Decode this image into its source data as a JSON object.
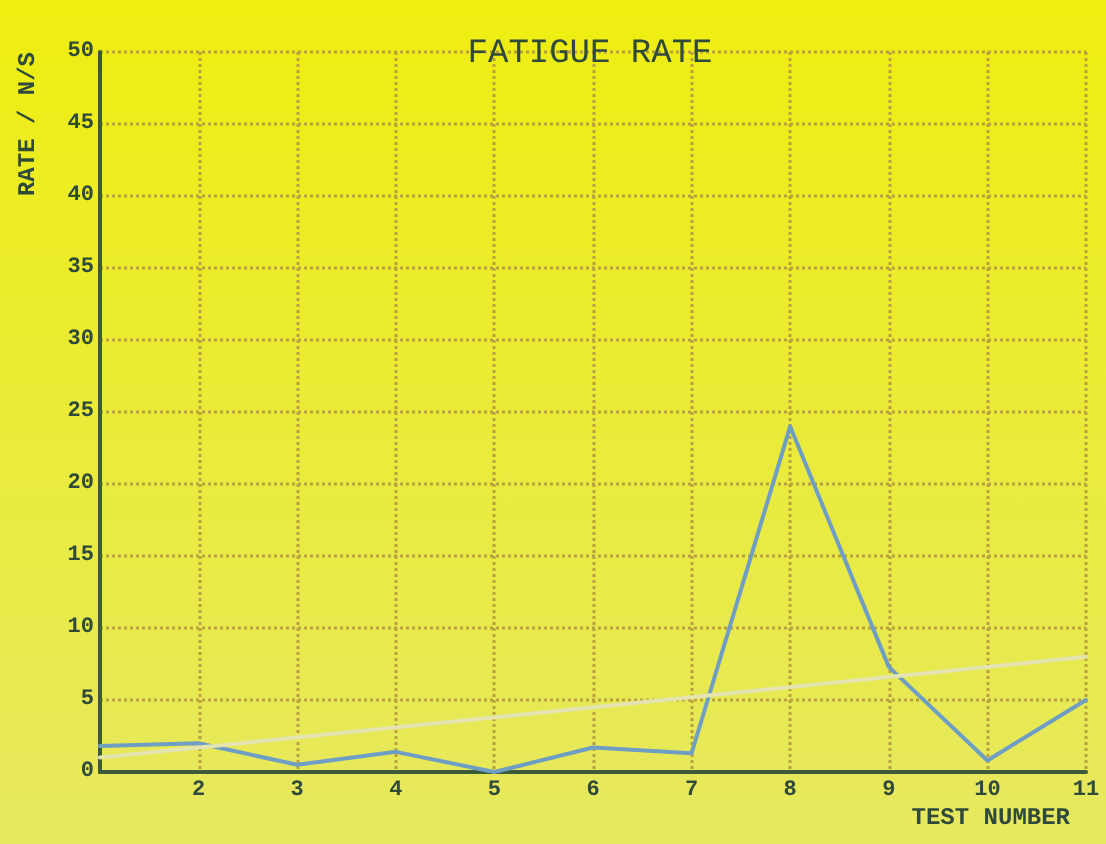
{
  "chart_data": {
    "type": "line",
    "title": "FATIGUE RATE",
    "xlabel": "TEST NUMBER",
    "ylabel": "RATE / N/S",
    "xlim": [
      1,
      11
    ],
    "xticks": [
      2,
      3,
      4,
      5,
      6,
      7,
      8,
      9,
      10,
      11
    ],
    "ylim": [
      0,
      50
    ],
    "yticks": [
      0,
      5,
      10,
      15,
      20,
      25,
      30,
      35,
      40,
      45,
      50
    ],
    "grid": true,
    "line_style": "solid",
    "marker": "none",
    "series": [
      {
        "color": "#6f9ec4",
        "x": [
          1,
          2,
          3,
          4,
          5,
          6,
          7,
          8,
          9,
          10,
          11
        ],
        "values": [
          1.8,
          2,
          0.5,
          1.4,
          0,
          1.7,
          1.3,
          24,
          7.3,
          0.8,
          5
        ]
      },
      {
        "type": "line",
        "color": "#e4e4b0",
        "x": [
          1,
          11
        ],
        "values": [
          1,
          8
        ]
      }
    ]
  }
}
